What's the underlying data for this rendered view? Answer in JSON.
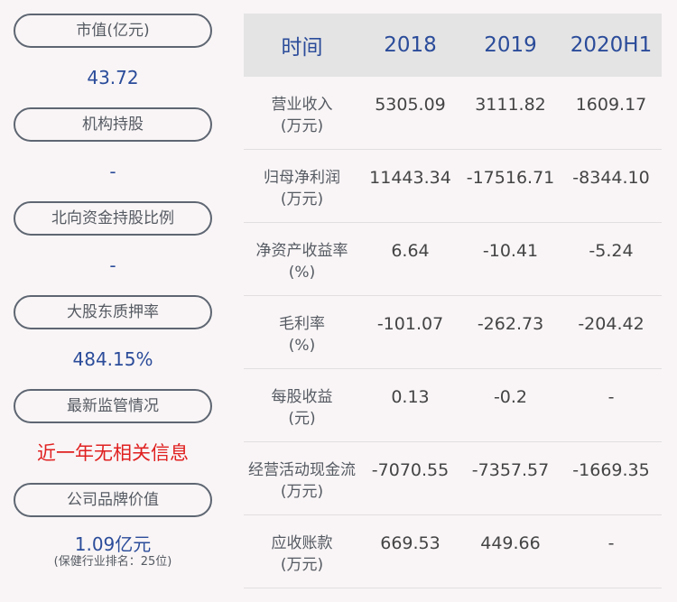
{
  "left_panel": {
    "items": [
      {
        "label": "市值(亿元)",
        "value": "43.72"
      },
      {
        "label": "机构持股",
        "value": "-"
      },
      {
        "label": "北向资金持股比例",
        "value": "-"
      },
      {
        "label": "大股东质押率",
        "value": "484.15%"
      },
      {
        "label": "最新监管情况",
        "value": "近一年无相关信息"
      },
      {
        "label": "公司品牌价值",
        "value": "1.09亿元",
        "note": "(保健行业排名：25位)"
      }
    ],
    "colors": {
      "value": "#2b4c9a",
      "alert": "#e02020",
      "pill_border": "#5e6672"
    }
  },
  "table": {
    "headers": [
      "时间",
      "2018",
      "2019",
      "2020H1"
    ],
    "rows": [
      {
        "label": "营业收入",
        "unit": "(万元)",
        "values": [
          "5305.09",
          "3111.82",
          "1609.17"
        ]
      },
      {
        "label": "归母净利润",
        "unit": "(万元)",
        "values": [
          "11443.34",
          "-17516.71",
          "-8344.10"
        ]
      },
      {
        "label": "净资产收益率",
        "unit": "(%)",
        "values": [
          "6.64",
          "-10.41",
          "-5.24"
        ]
      },
      {
        "label": "毛利率",
        "unit": "(%)",
        "values": [
          "-101.07",
          "-262.73",
          "-204.42"
        ]
      },
      {
        "label": "每股收益",
        "unit": "(元)",
        "values": [
          "0.13",
          "-0.2",
          "-"
        ]
      },
      {
        "label": "经营活动现金流",
        "unit": "(万元)",
        "values": [
          "-7070.55",
          "-7357.57",
          "-1669.35"
        ]
      },
      {
        "label": "应收账款",
        "unit": "(万元)",
        "values": [
          "669.53",
          "449.66",
          "-"
        ]
      }
    ],
    "colors": {
      "header_bg": "#e4e4e4",
      "header_text": "#2b4c9a"
    }
  }
}
